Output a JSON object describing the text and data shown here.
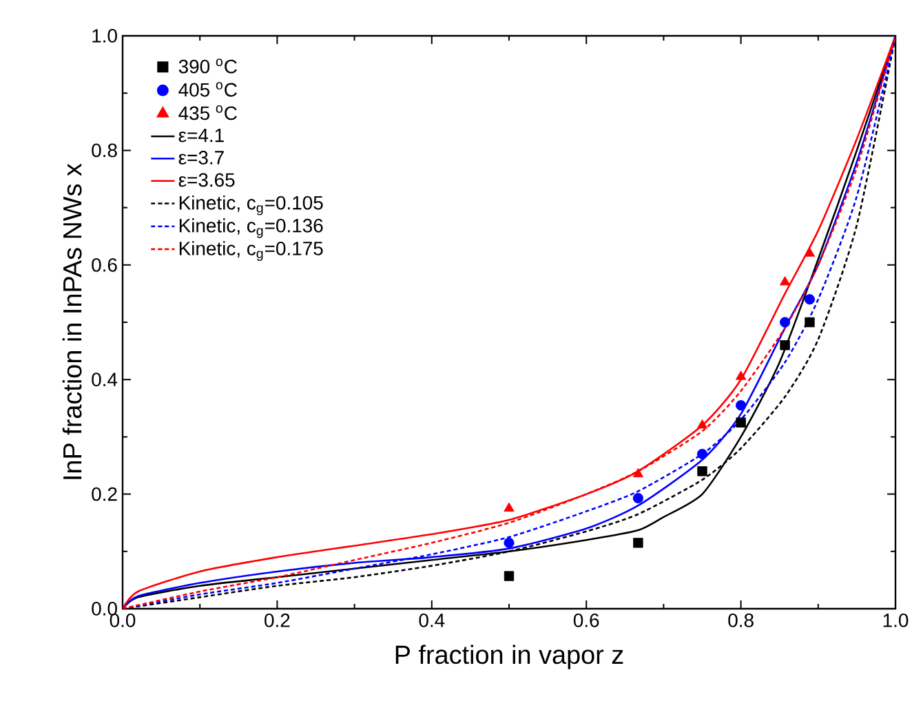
{
  "chart_data": {
    "type": "line",
    "xlabel": "P fraction in vapor z",
    "ylabel": "InP fraction in InPAs NWs x",
    "xlim": [
      0,
      1
    ],
    "ylim": [
      0,
      1
    ],
    "xticks": [
      {
        "value": 0,
        "label": "0.0"
      },
      0.2,
      0.4,
      0.6,
      0.8,
      {
        "value": 1,
        "label": "1.0"
      }
    ],
    "yticks": [
      {
        "value": 0,
        "label": "0.0"
      },
      0.2,
      0.4,
      0.6,
      0.8,
      {
        "value": 1,
        "label": "1.0"
      }
    ],
    "grid": false,
    "legend": "top left",
    "series": [
      {
        "name": "390 $^{o}$C",
        "type": "scatter",
        "marker": "square",
        "color": "#000000",
        "x": [
          0.5,
          0.667,
          0.75,
          0.8,
          0.857,
          0.889
        ],
        "values": [
          0.057,
          0.115,
          0.24,
          0.325,
          0.46,
          0.5
        ]
      },
      {
        "name": "405 $^{o}$C",
        "type": "scatter",
        "marker": "circle",
        "color": "#0000ff",
        "x": [
          0.5,
          0.667,
          0.75,
          0.8,
          0.857,
          0.889
        ],
        "values": [
          0.115,
          0.193,
          0.27,
          0.355,
          0.5,
          0.54
        ]
      },
      {
        "name": "435 $^{o}$C",
        "type": "scatter",
        "marker": "triangle",
        "color": "#ff0000",
        "x": [
          0.5,
          0.667,
          0.75,
          0.8,
          0.857,
          0.889
        ],
        "values": [
          0.175,
          0.235,
          0.32,
          0.405,
          0.57,
          0.62
        ]
      },
      {
        "name": "ε=4.1",
        "line_style": "solid",
        "color": "#000000",
        "x": [
          0,
          0.02,
          0.1,
          0.2,
          0.3,
          0.4,
          0.5,
          0.6,
          0.667,
          0.7,
          0.75,
          0.8,
          0.85,
          0.9,
          0.95,
          1
        ],
        "values": [
          0,
          0.02,
          0.04,
          0.055,
          0.07,
          0.085,
          0.1,
          0.12,
          0.137,
          0.16,
          0.2,
          0.3,
          0.43,
          0.61,
          0.8,
          1
        ]
      },
      {
        "name": "ε=3.7",
        "line_style": "solid",
        "color": "#0000ff",
        "x": [
          0,
          0.02,
          0.1,
          0.2,
          0.3,
          0.4,
          0.5,
          0.6,
          0.667,
          0.75,
          0.8,
          0.857,
          0.9,
          0.95,
          1
        ],
        "values": [
          0,
          0.022,
          0.045,
          0.065,
          0.08,
          0.09,
          0.105,
          0.14,
          0.18,
          0.26,
          0.34,
          0.49,
          0.6,
          0.78,
          1
        ]
      },
      {
        "name": "ε=3.65",
        "line_style": "solid",
        "color": "#ff0000",
        "x": [
          0,
          0.02,
          0.1,
          0.2,
          0.3,
          0.4,
          0.5,
          0.6,
          0.667,
          0.75,
          0.8,
          0.857,
          0.9,
          0.95,
          1
        ],
        "values": [
          0,
          0.03,
          0.065,
          0.09,
          0.11,
          0.13,
          0.155,
          0.2,
          0.24,
          0.32,
          0.4,
          0.55,
          0.66,
          0.82,
          1
        ]
      },
      {
        "name": "Kinetic, c$_{g}$=0.105",
        "line_style": "dashed",
        "color": "#000000",
        "x": [
          0,
          0.1,
          0.2,
          0.3,
          0.4,
          0.5,
          0.6,
          0.667,
          0.75,
          0.8,
          0.857,
          0.9,
          0.95,
          1
        ],
        "values": [
          0,
          0.02,
          0.04,
          0.055,
          0.075,
          0.1,
          0.135,
          0.165,
          0.225,
          0.28,
          0.37,
          0.47,
          0.67,
          1
        ]
      },
      {
        "name": "Kinetic, c$_{g}$=0.136",
        "line_style": "dashed",
        "color": "#0000ff",
        "x": [
          0,
          0.1,
          0.2,
          0.3,
          0.4,
          0.5,
          0.6,
          0.667,
          0.75,
          0.8,
          0.857,
          0.9,
          0.95,
          1
        ],
        "values": [
          0,
          0.025,
          0.045,
          0.07,
          0.095,
          0.125,
          0.17,
          0.205,
          0.27,
          0.33,
          0.43,
          0.54,
          0.72,
          1
        ]
      },
      {
        "name": "Kinetic, c$_{g}$=0.175",
        "line_style": "dashed",
        "color": "#ff0000",
        "x": [
          0,
          0.1,
          0.2,
          0.3,
          0.4,
          0.5,
          0.6,
          0.667,
          0.75,
          0.8,
          0.857,
          0.9,
          0.95,
          1
        ],
        "values": [
          0,
          0.03,
          0.055,
          0.085,
          0.115,
          0.15,
          0.2,
          0.24,
          0.31,
          0.38,
          0.49,
          0.6,
          0.77,
          1
        ]
      }
    ]
  }
}
